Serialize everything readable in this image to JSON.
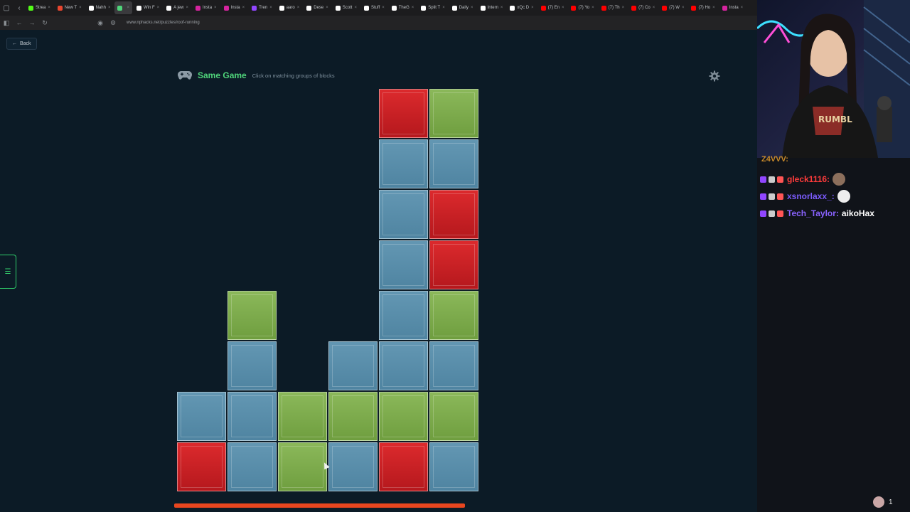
{
  "browser": {
    "tabs": [
      {
        "label": "Strea",
        "color": "#53fc18"
      },
      {
        "label": "New T",
        "color": "#e8462f"
      },
      {
        "label": "Nahh",
        "color": "#ffffff"
      },
      {
        "label": "",
        "color": "#4fd47a",
        "active": true
      },
      {
        "label": "Win F",
        "color": "#ffffff"
      },
      {
        "label": "A jew",
        "color": "#ffffff"
      },
      {
        "label": "Insta",
        "color": "#d6249f"
      },
      {
        "label": "Insta",
        "color": "#d6249f"
      },
      {
        "label": "Tren",
        "color": "#9146ff"
      },
      {
        "label": "aaro",
        "color": "#ffffff"
      },
      {
        "label": "Dese",
        "color": "#ffffff"
      },
      {
        "label": "Scott",
        "color": "#ffffff"
      },
      {
        "label": "Stuff",
        "color": "#ffffff"
      },
      {
        "label": "TheG",
        "color": "#ffffff"
      },
      {
        "label": "Split T",
        "color": "#ffffff"
      },
      {
        "label": "Daily",
        "color": "#ffffff"
      },
      {
        "label": "Intern",
        "color": "#ffffff"
      },
      {
        "label": "xQc D",
        "color": "#ffffff"
      },
      {
        "label": "(7) En",
        "color": "#ff0000"
      },
      {
        "label": "(7) Yo",
        "color": "#ff0000"
      },
      {
        "label": "(7) Th",
        "color": "#ff0000"
      },
      {
        "label": "(7) Co",
        "color": "#ff0000"
      },
      {
        "label": "(7) W",
        "color": "#ff0000"
      },
      {
        "label": "(7) Ho",
        "color": "#ff0000"
      },
      {
        "label": "Insta",
        "color": "#d6249f"
      }
    ],
    "url": "www.nphacks.net/puzzles/roof-running"
  },
  "page": {
    "back_label": "Back",
    "game_title": "Same Game",
    "game_subtitle": "Click on matching groups of blocks"
  },
  "board": {
    "cols": 6,
    "rows": 8,
    "columns": [
      [
        "red",
        "blue"
      ],
      [
        "blue",
        "blue",
        "blue",
        "green"
      ],
      [
        "green",
        "green"
      ],
      [
        "blue",
        "green",
        "blue"
      ],
      [
        "red",
        "green",
        "blue",
        "blue",
        "blue",
        "blue",
        "blue",
        "red"
      ],
      [
        "blue",
        "green",
        "blue",
        "green",
        "red",
        "red",
        "blue",
        "green"
      ]
    ],
    "timer_fraction": 0.95
  },
  "colors": {
    "blue": "#5a8eab",
    "green": "#7eab4c",
    "red": "#cc2025",
    "accent": "#4fd47a",
    "timer": "#e8461f"
  },
  "chat": {
    "partial_line": "Z4VVV:",
    "messages": [
      {
        "user": "gleck1116:",
        "color": "#ff3b3b",
        "text": ""
      },
      {
        "user": "xsnorlaxx_:",
        "color": "#7c5cff",
        "text": ""
      },
      {
        "user": "Tech_Taylor:",
        "color": "#8a63ff",
        "text": "aikoHax"
      }
    ]
  },
  "stream": {
    "viewer_count": "1"
  }
}
